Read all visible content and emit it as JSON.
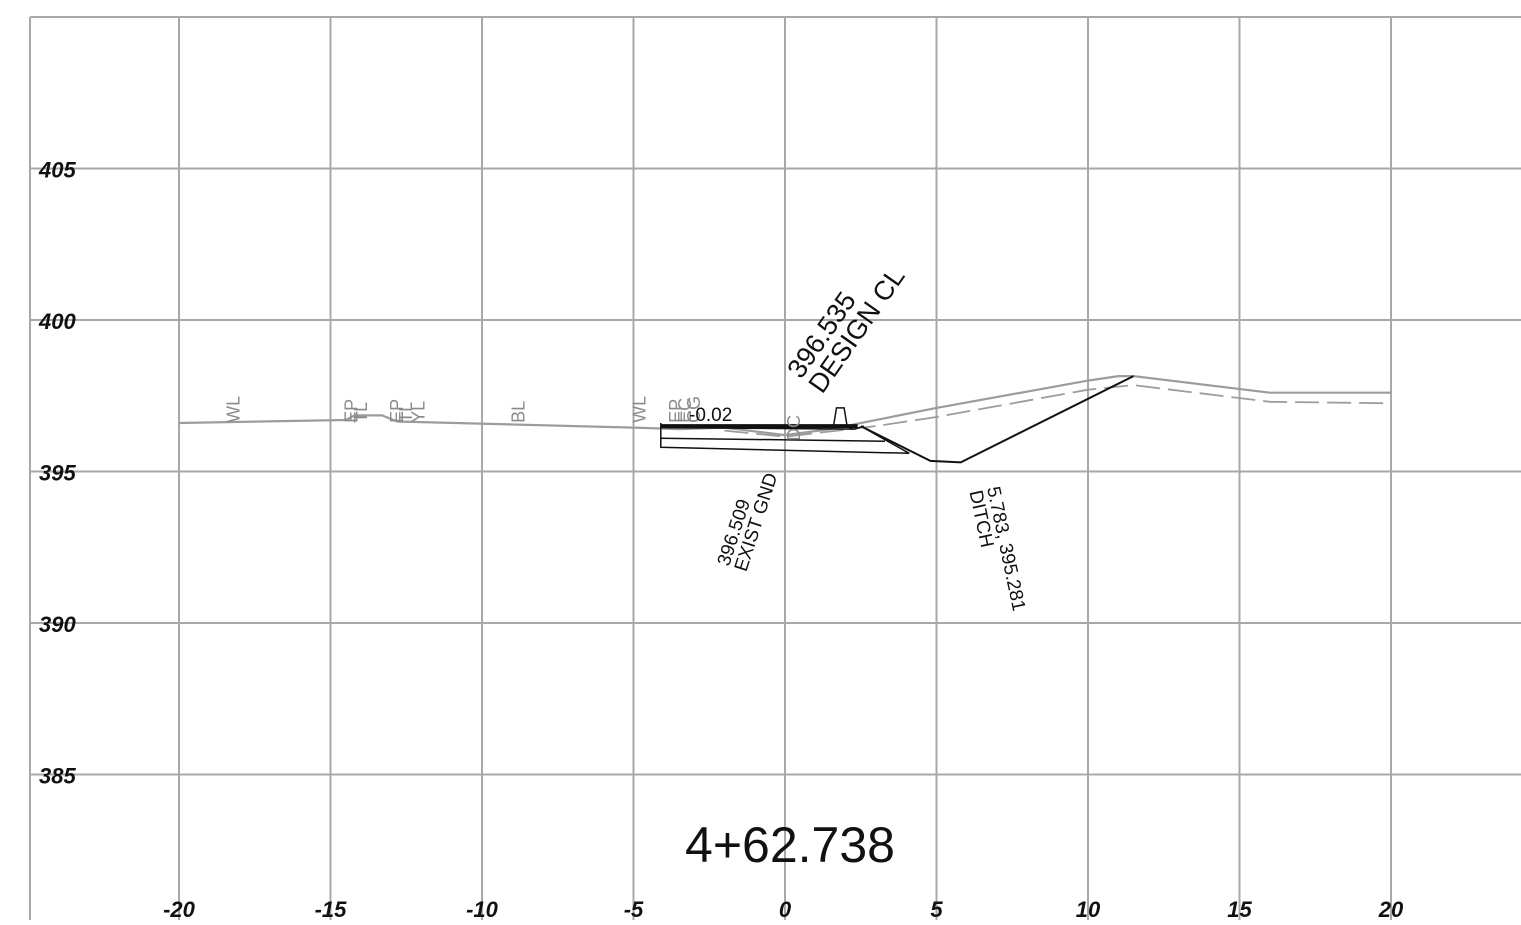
{
  "drawing": {
    "station_label": "4+62.738",
    "x_axis": {
      "range": [
        -25,
        25
      ],
      "ticks": [
        -20,
        -15,
        -10,
        -5,
        0,
        5,
        10,
        15,
        20
      ],
      "tick_labels": [
        "-20",
        "-15",
        "-10",
        "-5",
        "0",
        "5",
        "10",
        "15",
        "20"
      ]
    },
    "y_axis": {
      "range": [
        380,
        410
      ],
      "ticks": [
        405,
        400,
        395,
        390,
        385
      ],
      "tick_labels": [
        "405",
        "400",
        "395",
        "390",
        "385"
      ]
    },
    "colors": {
      "grid": "#a8a8a8",
      "existing_ground": "#9c9c9c",
      "design": "#111111",
      "feature_code_text": "#8a8a8a"
    },
    "feature_codes": [
      {
        "id": "wl-left",
        "text": "WL",
        "station": -18.2,
        "elev": 397.2
      },
      {
        "id": "ep-1",
        "text": "EP",
        "station": -14.3,
        "elev": 397.2
      },
      {
        "id": "tl-1",
        "text": "TL",
        "station": -14.0,
        "elev": 397.2
      },
      {
        "id": "ep-2",
        "text": "EP",
        "station": -12.8,
        "elev": 397.2
      },
      {
        "id": "tl-2",
        "text": "TL",
        "station": -12.5,
        "elev": 397.2
      },
      {
        "id": "yl",
        "text": "YL",
        "station": -12.1,
        "elev": 397.2
      },
      {
        "id": "bl",
        "text": "BL",
        "station": -8.8,
        "elev": 397.2
      },
      {
        "id": "wl-right",
        "text": "WL",
        "station": -4.8,
        "elev": 397.2
      },
      {
        "id": "ep-3",
        "text": "EP",
        "station": -3.6,
        "elev": 397.2
      },
      {
        "id": "ec",
        "text": "EC",
        "station": -3.3,
        "elev": 397.2
      },
      {
        "id": "cg",
        "text": "CG",
        "station": -3.0,
        "elev": 397.2
      },
      {
        "id": "dc",
        "text": "DC",
        "station": 0.3,
        "elev": 396.6
      }
    ],
    "annotations": {
      "cross_slope": "-0.02",
      "design_cl_value": "396.535",
      "design_cl_label": "DESIGN CL",
      "exist_gnd_value": "396.509",
      "exist_gnd_label": "EXIST GND",
      "ditch_value": "5.783, 395.281",
      "ditch_label": "DITCH"
    },
    "existing_ground": {
      "solid": [
        [
          -20,
          396.6
        ],
        [
          -14.5,
          396.7
        ],
        [
          -14.2,
          396.85
        ],
        [
          -13.3,
          396.85
        ],
        [
          -12.8,
          396.65
        ],
        [
          -5,
          396.45
        ],
        [
          -3.5,
          396.4
        ],
        [
          -2,
          396.45
        ],
        [
          0,
          396.2
        ],
        [
          1.5,
          396.4
        ],
        [
          5,
          397.1
        ],
        [
          10,
          398
        ],
        [
          11,
          398.15
        ],
        [
          11.5,
          398.15
        ],
        [
          16,
          397.6
        ],
        [
          20,
          397.6
        ]
      ],
      "dashed": [
        [
          -2,
          396.35
        ],
        [
          0,
          396.15
        ],
        [
          3,
          396.5
        ],
        [
          5,
          396.8
        ],
        [
          10,
          397.7
        ],
        [
          11.5,
          397.85
        ],
        [
          16,
          397.3
        ],
        [
          20,
          397.25
        ]
      ]
    },
    "design_section": {
      "surface": [
        [
          -4.1,
          396.5
        ],
        [
          2.4,
          396.5
        ]
      ],
      "lower_edge": [
        [
          -4.1,
          396.45
        ],
        [
          2.3,
          396.4
        ],
        [
          2.6,
          396.5
        ]
      ],
      "curb": [
        [
          1.4,
          396.45
        ],
        [
          1.6,
          396.5
        ],
        [
          1.7,
          397.1
        ],
        [
          1.95,
          397.1
        ],
        [
          2.05,
          396.5
        ],
        [
          2.2,
          396.4
        ]
      ],
      "base_outline": [
        [
          -4.1,
          396.6
        ],
        [
          -4.1,
          395.8
        ],
        [
          4.1,
          395.6
        ],
        [
          2.5,
          396.5
        ]
      ],
      "base_layer": [
        [
          -4.1,
          396.1
        ],
        [
          3.3,
          396.0
        ]
      ],
      "ditch_profile": [
        [
          2.5,
          396.5
        ],
        [
          4.8,
          395.35
        ],
        [
          5.8,
          395.3
        ],
        [
          11.5,
          398.15
        ]
      ]
    }
  }
}
